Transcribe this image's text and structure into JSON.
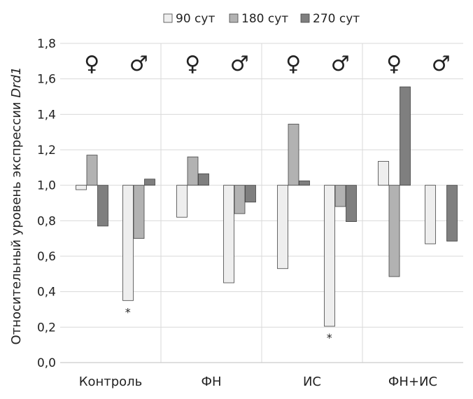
{
  "chart_data": {
    "type": "bar",
    "title": "",
    "xlabel": "",
    "ylabel_prefix": "Относительный уровень экспрессии ",
    "ylabel_gene": "Drd1",
    "ylim": [
      0,
      1.8
    ],
    "yticks": [
      "0,0",
      "0,2",
      "0,4",
      "0,6",
      "0,8",
      "1,0",
      "1,2",
      "1,4",
      "1,6",
      "1,8"
    ],
    "baseline": 1.0,
    "legend_position": "top",
    "grid": true,
    "groups": [
      "Контроль",
      "ФН",
      "ИС",
      "ФН+ИС"
    ],
    "sex_labels": [
      "♀",
      "♂"
    ],
    "series": [
      {
        "name": "90 сут",
        "color": "#eeeeee"
      },
      {
        "name": "180 сут",
        "color": "#b2b2b2"
      },
      {
        "name": "270 сут",
        "color": "#7f7f7f"
      }
    ],
    "values": [
      [
        [
          0.975,
          1.17,
          0.77
        ],
        [
          0.35,
          0.7,
          1.035
        ]
      ],
      [
        [
          0.82,
          1.16,
          1.065
        ],
        [
          0.45,
          0.84,
          0.905
        ]
      ],
      [
        [
          0.53,
          1.345,
          1.025
        ],
        [
          0.205,
          0.88,
          0.795
        ]
      ],
      [
        [
          1.135,
          0.485,
          1.555
        ],
        [
          0.67,
          null,
          0.685
        ]
      ]
    ],
    "annotations": [
      {
        "text": "*",
        "group": 0,
        "sex": 1,
        "series": 0
      },
      {
        "text": "*",
        "group": 2,
        "sex": 1,
        "series": 0
      }
    ]
  }
}
